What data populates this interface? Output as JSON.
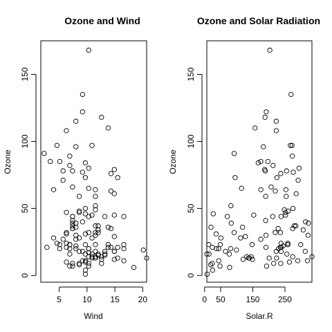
{
  "chart_data": [
    {
      "type": "scatter",
      "title": "Ozone and Wind",
      "xlabel": "Wind",
      "ylabel": "Ozone",
      "xlim": [
        1.7,
        20.7
      ],
      "ylim": [
        -5,
        175
      ],
      "xticks": [
        5,
        10,
        15,
        20
      ],
      "yticks": [
        0,
        50,
        100,
        150
      ],
      "grid": false,
      "points": [
        [
          7.4,
          41
        ],
        [
          8.0,
          36
        ],
        [
          12.6,
          12
        ],
        [
          11.5,
          18
        ],
        [
          8.6,
          28
        ],
        [
          13.8,
          23
        ],
        [
          20.1,
          19
        ],
        [
          8.6,
          8
        ],
        [
          6.9,
          7
        ],
        [
          9.7,
          16
        ],
        [
          9.2,
          11
        ],
        [
          10.9,
          14
        ],
        [
          13.2,
          18
        ],
        [
          11.5,
          14
        ],
        [
          12.0,
          34
        ],
        [
          18.4,
          6
        ],
        [
          11.5,
          30
        ],
        [
          9.7,
          11
        ],
        [
          9.7,
          1
        ],
        [
          16.6,
          11
        ],
        [
          9.7,
          4
        ],
        [
          12.0,
          32
        ],
        [
          16.6,
          23
        ],
        [
          14.9,
          45
        ],
        [
          8.0,
          115
        ],
        [
          12.0,
          37
        ],
        [
          14.9,
          29
        ],
        [
          5.7,
          71
        ],
        [
          7.4,
          39
        ],
        [
          9.7,
          23
        ],
        [
          13.8,
          21
        ],
        [
          11.5,
          37
        ],
        [
          8.0,
          20
        ],
        [
          14.9,
          12
        ],
        [
          20.7,
          13
        ],
        [
          9.2,
          135
        ],
        [
          11.5,
          49
        ],
        [
          10.3,
          32
        ],
        [
          4.0,
          64
        ],
        [
          9.2,
          40
        ],
        [
          9.2,
          77
        ],
        [
          4.6,
          97
        ],
        [
          10.9,
          97
        ],
        [
          5.1,
          85
        ],
        [
          6.3,
          10
        ],
        [
          5.7,
          27
        ],
        [
          7.4,
          7
        ],
        [
          8.6,
          48
        ],
        [
          14.3,
          35
        ],
        [
          14.9,
          61
        ],
        [
          14.9,
          79
        ],
        [
          14.3,
          63
        ],
        [
          6.9,
          16
        ],
        [
          10.3,
          80
        ],
        [
          6.3,
          108
        ],
        [
          5.1,
          20
        ],
        [
          11.5,
          52
        ],
        [
          6.9,
          82
        ],
        [
          9.7,
          50
        ],
        [
          11.5,
          64
        ],
        [
          8.6,
          59
        ],
        [
          8.0,
          39
        ],
        [
          8.6,
          9
        ],
        [
          12.0,
          16
        ],
        [
          7.4,
          78
        ],
        [
          7.4,
          35
        ],
        [
          7.4,
          66
        ],
        [
          9.2,
          122
        ],
        [
          6.9,
          89
        ],
        [
          13.8,
          110
        ],
        [
          7.4,
          44
        ],
        [
          4.0,
          28
        ],
        [
          10.3,
          65
        ],
        [
          8.0,
          22
        ],
        [
          11.5,
          59
        ],
        [
          11.5,
          23
        ],
        [
          9.7,
          31
        ],
        [
          10.3,
          44
        ],
        [
          6.3,
          21
        ],
        [
          7.4,
          9
        ],
        [
          10.9,
          45
        ],
        [
          10.3,
          168
        ],
        [
          15.5,
          73
        ],
        [
          14.3,
          76
        ],
        [
          12.6,
          118
        ],
        [
          9.7,
          84
        ],
        [
          3.4,
          85
        ],
        [
          8.0,
          96
        ],
        [
          5.7,
          78
        ],
        [
          9.7,
          73
        ],
        [
          2.3,
          91
        ],
        [
          6.3,
          47
        ],
        [
          6.3,
          32
        ],
        [
          6.9,
          20
        ],
        [
          5.1,
          23
        ],
        [
          2.8,
          21
        ],
        [
          4.6,
          24
        ],
        [
          7.4,
          44
        ],
        [
          15.5,
          21
        ],
        [
          10.9,
          28
        ],
        [
          10.3,
          9
        ],
        [
          10.9,
          13
        ],
        [
          9.7,
          46
        ],
        [
          14.9,
          18
        ],
        [
          15.5,
          13
        ],
        [
          6.3,
          24
        ],
        [
          10.9,
          16
        ],
        [
          11.5,
          13
        ],
        [
          6.9,
          23
        ],
        [
          13.8,
          36
        ],
        [
          10.3,
          7
        ],
        [
          10.3,
          14
        ],
        [
          8.0,
          30
        ],
        [
          12.6,
          14
        ],
        [
          9.2,
          18
        ],
        [
          10.3,
          20
        ],
        [
          10.3,
          17
        ],
        [
          16.6,
          20
        ],
        [
          6.9,
          23
        ],
        [
          13.2,
          16
        ],
        [
          14.3,
          21
        ],
        [
          8.0,
          27
        ],
        [
          11.5,
          32
        ],
        [
          14.9,
          18
        ],
        [
          13.2,
          15
        ],
        [
          16.6,
          44
        ],
        [
          9.7,
          10
        ],
        [
          7.4,
          37
        ],
        [
          12.0,
          15
        ],
        [
          12.6,
          9
        ],
        [
          8.6,
          47
        ],
        [
          10.3,
          20
        ],
        [
          7.4,
          35
        ],
        [
          13.2,
          44
        ],
        [
          8.6,
          18
        ],
        [
          6.3,
          31
        ]
      ]
    },
    {
      "type": "scatter",
      "title": "Ozone and Solar Radiation",
      "xlabel": "Solar.R",
      "ylabel": "Ozone",
      "xlim": [
        7,
        334
      ],
      "ylim": [
        -5,
        175
      ],
      "xticks": [
        0,
        50,
        150,
        250
      ],
      "yticks": [
        0,
        50,
        100,
        150
      ],
      "grid": false,
      "points": [
        [
          190,
          41
        ],
        [
          118,
          36
        ],
        [
          149,
          12
        ],
        [
          313,
          18
        ],
        [
          299,
          23
        ],
        [
          99,
          19
        ],
        [
          19,
          8
        ],
        [
          256,
          16
        ],
        [
          290,
          11
        ],
        [
          274,
          14
        ],
        [
          65,
          18
        ],
        [
          334,
          14
        ],
        [
          307,
          34
        ],
        [
          78,
          6
        ],
        [
          322,
          30
        ],
        [
          44,
          11
        ],
        [
          8,
          1
        ],
        [
          320,
          11
        ],
        [
          25,
          4
        ],
        [
          92,
          32
        ],
        [
          13,
          23
        ],
        [
          252,
          45
        ],
        [
          223,
          115
        ],
        [
          279,
          37
        ],
        [
          127,
          29
        ],
        [
          291,
          71
        ],
        [
          323,
          39
        ],
        [
          148,
          23
        ],
        [
          191,
          21
        ],
        [
          284,
          37
        ],
        [
          37,
          20
        ],
        [
          120,
          12
        ],
        [
          137,
          13
        ],
        [
          269,
          135
        ],
        [
          248,
          49
        ],
        [
          236,
          32
        ],
        [
          175,
          64
        ],
        [
          314,
          40
        ],
        [
          276,
          77
        ],
        [
          267,
          97
        ],
        [
          272,
          97
        ],
        [
          175,
          85
        ],
        [
          264,
          10
        ],
        [
          175,
          27
        ],
        [
          48,
          7
        ],
        [
          260,
          48
        ],
        [
          274,
          35
        ],
        [
          285,
          61
        ],
        [
          187,
          79
        ],
        [
          220,
          63
        ],
        [
          7,
          16
        ],
        [
          294,
          80
        ],
        [
          223,
          108
        ],
        [
          81,
          20
        ],
        [
          82,
          52
        ],
        [
          213,
          82
        ],
        [
          275,
          50
        ],
        [
          253,
          64
        ],
        [
          254,
          59
        ],
        [
          83,
          39
        ],
        [
          24,
          9
        ],
        [
          77,
          16
        ],
        [
          255,
          78
        ],
        [
          229,
          35
        ],
        [
          207,
          66
        ],
        [
          192,
          122
        ],
        [
          273,
          89
        ],
        [
          157,
          110
        ],
        [
          71,
          44
        ],
        [
          51,
          28
        ],
        [
          115,
          65
        ],
        [
          244,
          22
        ],
        [
          190,
          59
        ],
        [
          259,
          23
        ],
        [
          36,
          31
        ],
        [
          212,
          44
        ],
        [
          238,
          21
        ],
        [
          215,
          9
        ],
        [
          153,
          45
        ],
        [
          203,
          168
        ],
        [
          225,
          73
        ],
        [
          237,
          76
        ],
        [
          188,
          118
        ],
        [
          167,
          84
        ],
        [
          197,
          85
        ],
        [
          183,
          96
        ],
        [
          189,
          78
        ],
        [
          95,
          73
        ],
        [
          92,
          91
        ],
        [
          252,
          47
        ],
        [
          220,
          32
        ],
        [
          230,
          20
        ],
        [
          259,
          23
        ],
        [
          236,
          21
        ],
        [
          259,
          24
        ],
        [
          238,
          44
        ],
        [
          24,
          21
        ],
        [
          112,
          28
        ],
        [
          237,
          9
        ],
        [
          224,
          13
        ],
        [
          27,
          46
        ],
        [
          238,
          18
        ],
        [
          201,
          13
        ],
        [
          238,
          24
        ],
        [
          14,
          16
        ],
        [
          139,
          13
        ],
        [
          49,
          23
        ],
        [
          20,
          36
        ],
        [
          193,
          7
        ],
        [
          145,
          14
        ],
        [
          191,
          30
        ],
        [
          131,
          14
        ],
        [
          223,
          18
        ],
        [
          44,
          20
        ]
      ]
    }
  ]
}
